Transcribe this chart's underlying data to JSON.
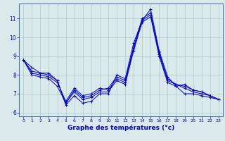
{
  "xlabel": "Graphe des températures (°c)",
  "xlim": [
    -0.5,
    23.5
  ],
  "ylim": [
    5.8,
    11.8
  ],
  "xticks": [
    0,
    1,
    2,
    3,
    4,
    5,
    6,
    7,
    8,
    9,
    10,
    11,
    12,
    13,
    14,
    15,
    16,
    17,
    18,
    19,
    20,
    21,
    22,
    23
  ],
  "yticks": [
    6,
    7,
    8,
    9,
    10,
    11
  ],
  "background_color": "#daeaea",
  "line_color": "#0000cc",
  "grid_color": "#aacccc",
  "marker": "+",
  "series": [
    [
      8.8,
      8.4,
      8.1,
      8.1,
      7.7,
      6.4,
      6.9,
      6.5,
      6.6,
      7.0,
      7.0,
      8.0,
      7.8,
      9.7,
      10.9,
      11.5,
      9.3,
      7.9,
      7.4,
      7.0,
      7.0,
      6.9,
      6.8,
      6.7
    ],
    [
      8.8,
      8.2,
      8.1,
      8.0,
      7.7,
      6.5,
      7.2,
      6.8,
      6.9,
      7.2,
      7.3,
      7.9,
      7.7,
      9.5,
      11.0,
      11.3,
      9.2,
      7.8,
      7.5,
      7.3,
      7.1,
      7.0,
      6.9,
      6.7
    ],
    [
      8.8,
      8.1,
      8.0,
      7.9,
      7.6,
      6.6,
      7.3,
      6.9,
      7.0,
      7.3,
      7.2,
      7.8,
      7.6,
      9.4,
      10.9,
      11.2,
      9.1,
      7.7,
      7.5,
      7.4,
      7.2,
      7.1,
      6.9,
      6.7
    ],
    [
      8.8,
      8.0,
      7.9,
      7.8,
      7.4,
      6.5,
      7.1,
      6.7,
      6.8,
      7.1,
      7.1,
      7.7,
      7.5,
      9.3,
      10.8,
      11.1,
      9.0,
      7.6,
      7.4,
      7.5,
      7.2,
      7.1,
      6.9,
      6.7
    ]
  ]
}
